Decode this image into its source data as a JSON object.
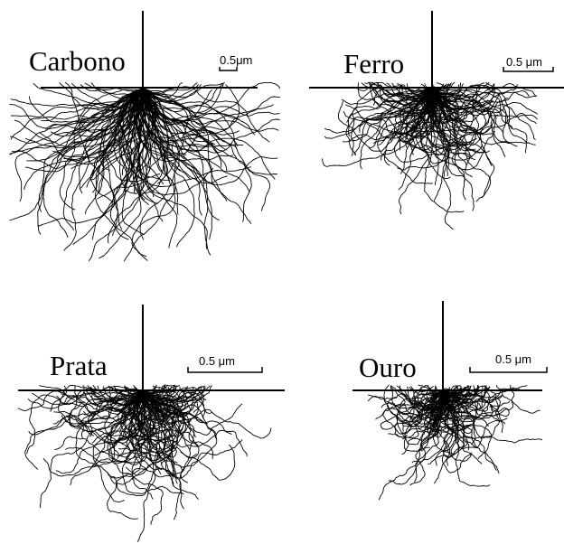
{
  "panels": [
    {
      "label": "Carbono",
      "scale": "0.5μm"
    },
    {
      "label": "Ferro",
      "scale": "0.5 μm"
    },
    {
      "label": "Prata",
      "scale": "0.5 μm"
    },
    {
      "label": "Ouro",
      "scale": "0.5 μm"
    }
  ]
}
